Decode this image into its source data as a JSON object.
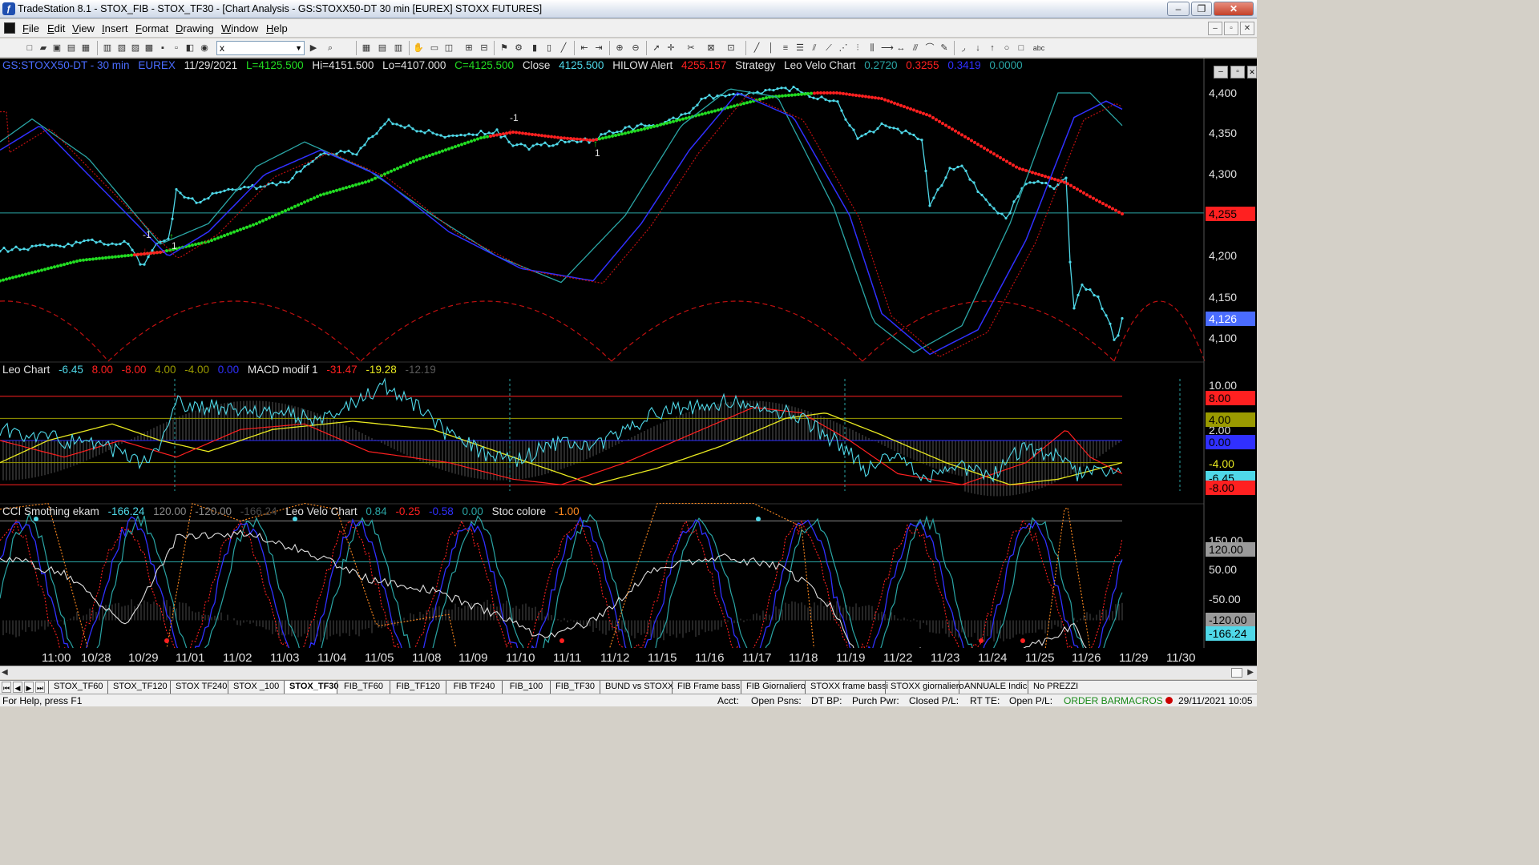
{
  "window": {
    "title": "TradeStation 8.1 - STOX_FIB - STOX_TF30 - [Chart Analysis - GS:STOXX50-DT  30 min  [EUREX] STOXX FUTURES]"
  },
  "menu": [
    "File",
    "Edit",
    "View",
    "Insert",
    "Format",
    "Drawing",
    "Window",
    "Help"
  ],
  "toolbar": {
    "symbol_value": "x"
  },
  "colors": {
    "cyan": "#4fd8e8",
    "teal": "#2aa5a5",
    "red": "#ff2020",
    "dark_red": "#c01010",
    "green": "#22dd22",
    "blue": "#3030ff",
    "yellow": "#e8e820",
    "white": "#e0e0e0",
    "gray": "#8a8a8a",
    "orange": "#ff8a20",
    "olive": "#9a9a00"
  },
  "panel1": {
    "header": [
      {
        "text": "GS:STOXX50-DT - 30 min",
        "color": "#4a6cff"
      },
      {
        "text": "EUREX",
        "color": "#4a6cff"
      },
      {
        "text": "11/29/2021",
        "color": "#e0e0e0"
      },
      {
        "text": "L=4125.500",
        "color": "#22dd22"
      },
      {
        "text": "Hi=4151.500",
        "color": "#e0e0e0"
      },
      {
        "text": "Lo=4107.000",
        "color": "#e0e0e0"
      },
      {
        "text": "C=4125.500",
        "color": "#22dd22"
      },
      {
        "text": "Close",
        "color": "#e0e0e0"
      },
      {
        "text": "4125.500",
        "color": "#4fd8e8"
      },
      {
        "text": "HILOW Alert",
        "color": "#e0e0e0"
      },
      {
        "text": "4255.157",
        "color": "#ff2020"
      },
      {
        "text": "Strategy",
        "color": "#e0e0e0"
      },
      {
        "text": "Leo Velo Chart",
        "color": "#e0e0e0"
      },
      {
        "text": "0.2720",
        "color": "#2aa5a5"
      },
      {
        "text": "0.3255",
        "color": "#ff2020"
      },
      {
        "text": "0.3419",
        "color": "#3030ff"
      },
      {
        "text": "0.0000",
        "color": "#2aa5a5"
      }
    ],
    "y_ticks": [
      "4,400",
      "4,350",
      "4,300",
      "4,250",
      "4,200",
      "4,150",
      "4,100"
    ],
    "price_box": "4,255",
    "last_box": "4,126",
    "markers": [
      "-1",
      "1",
      "-1",
      "1"
    ]
  },
  "panel2": {
    "header": [
      {
        "text": "Leo Chart",
        "color": "#e0e0e0"
      },
      {
        "text": "-6.45",
        "color": "#4fd8e8"
      },
      {
        "text": "8.00",
        "color": "#ff2020"
      },
      {
        "text": "-8.00",
        "color": "#ff2020"
      },
      {
        "text": "4.00",
        "color": "#9a9a00"
      },
      {
        "text": "-4.00",
        "color": "#9a9a00"
      },
      {
        "text": "0.00",
        "color": "#3030ff"
      },
      {
        "text": "MACD modif 1",
        "color": "#e0e0e0"
      },
      {
        "text": "-31.47",
        "color": "#ff2020"
      },
      {
        "text": "-19.28",
        "color": "#e8e820"
      },
      {
        "text": "-12.19",
        "color": "#5a5a5a"
      }
    ],
    "y_ticks": [
      "10.00",
      "2.00"
    ],
    "boxes": [
      {
        "text": "8.00",
        "bg": "#ff2020",
        "fg": "#000"
      },
      {
        "text": "4.00",
        "bg": "#9a9a00",
        "fg": "#000"
      },
      {
        "text": "0.00",
        "bg": "#3030ff",
        "fg": "#000"
      },
      {
        "text": "-4.00",
        "bg": "#000000",
        "fg": "#e8e820"
      },
      {
        "text": "-6.45",
        "bg": "#4fd8e8",
        "fg": "#000"
      },
      {
        "text": "-8.00",
        "bg": "#ff2020",
        "fg": "#000"
      }
    ]
  },
  "panel3": {
    "header": [
      {
        "text": "CCI Smothing ekam",
        "color": "#e0e0e0"
      },
      {
        "text": "-166.24",
        "color": "#4fd8e8"
      },
      {
        "text": "120.00",
        "color": "#8a8a8a"
      },
      {
        "text": "-120.00",
        "color": "#8a8a8a"
      },
      {
        "text": "-166.24",
        "color": "#4a4a4a"
      },
      {
        "text": "Leo Velo Chart",
        "color": "#e0e0e0"
      },
      {
        "text": "0.84",
        "color": "#2aa5a5"
      },
      {
        "text": "-0.25",
        "color": "#ff2020"
      },
      {
        "text": "-0.58",
        "color": "#3030ff"
      },
      {
        "text": "0.00",
        "color": "#2aa5a5"
      },
      {
        "text": "Stoc colore",
        "color": "#e0e0e0"
      },
      {
        "text": "-1.00",
        "color": "#ff8a20"
      }
    ],
    "y_ticks": [
      "150.00",
      "50.00",
      "-50.00"
    ],
    "boxes": [
      {
        "text": "120.00",
        "bg": "#9a9a9a",
        "fg": "#000"
      },
      {
        "text": "-120.00",
        "bg": "#9a9a9a",
        "fg": "#000"
      },
      {
        "text": "-166.24",
        "bg": "#4fd8e8",
        "fg": "#000"
      }
    ]
  },
  "x_axis": [
    "11:00",
    "10/28",
    "10/29",
    "11/01",
    "11/02",
    "11/03",
    "11/04",
    "11/05",
    "11/08",
    "11/09",
    "11/10",
    "11/11",
    "11/12",
    "11/15",
    "11/16",
    "11/17",
    "11/18",
    "11/19",
    "11/22",
    "11/23",
    "11/24",
    "11/25",
    "11/26",
    "11/29",
    "11/30"
  ],
  "tabs": [
    "STOX_TF60",
    "STOX_TF120",
    "STOX TF240",
    "STOX _100",
    "STOX_TF30",
    "FIB_TF60",
    "FIB_TF120",
    "FIB TF240",
    "FIB_100",
    "FIB_TF30",
    "BUND vs STOXX",
    "FIB Frame bassi",
    "FIB Giornaliero",
    "STOXX frame bassi",
    "STOXX giornaliero",
    "ANNUALE Indici",
    "No PREZZI"
  ],
  "active_tab": "STOX_TF30",
  "status": {
    "help": "For Help, press F1",
    "acct": "Acct:",
    "open_psns": "Open Psns:",
    "dt_bp": "DT BP:",
    "purch_pwr": "Purch Pwr:",
    "closed_pl": "Closed P/L:",
    "rt_te": "RT TE:",
    "open_pl": "Open P/L:",
    "order_bar": "ORDER BAR",
    "macros": "MACROS",
    "datetime": "29/11/2021 10:05"
  }
}
